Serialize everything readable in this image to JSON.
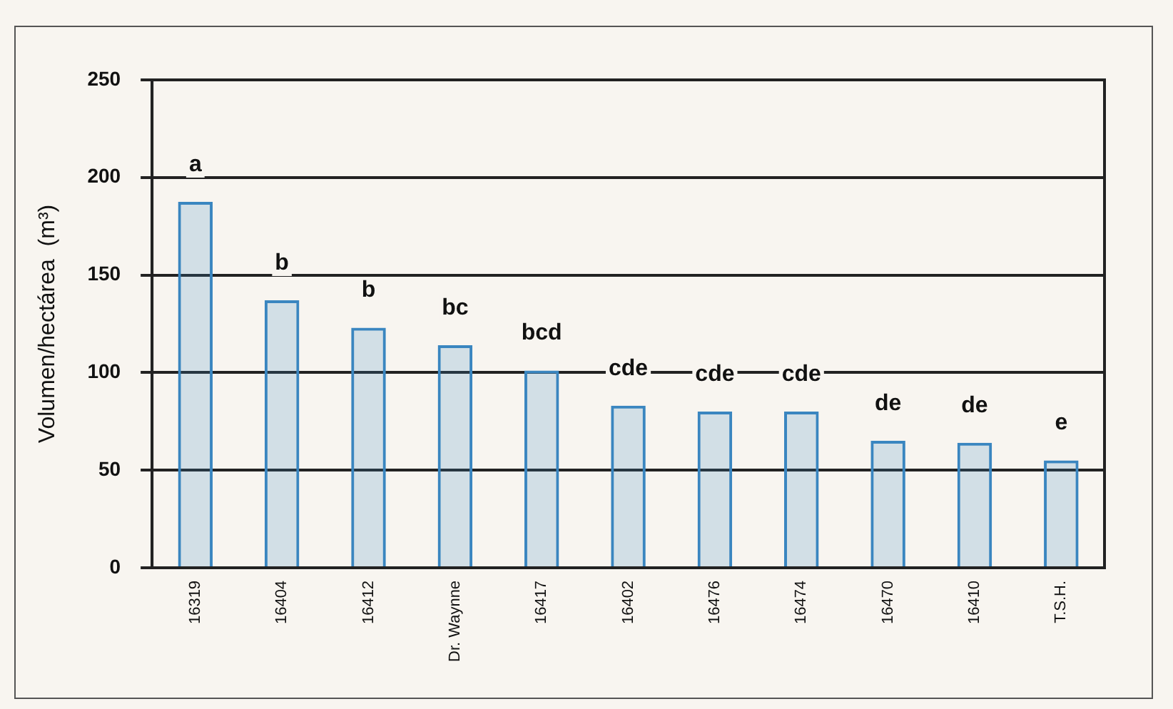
{
  "chart_data": {
    "type": "bar",
    "ylabel": "Volumen/hectárea  (m³)",
    "categories": [
      "16319",
      "16404",
      "16412",
      "Dr. Waynne",
      "16417",
      "16402",
      "16476",
      "16474",
      "16470",
      "16410",
      "T.S.H."
    ],
    "values": [
      187.5,
      137,
      123,
      114,
      101,
      83,
      80,
      80,
      65,
      64,
      55
    ],
    "color": "#3a86c0",
    "ylim": [
      0,
      250
    ],
    "yticks": [
      0,
      50,
      100,
      150,
      200,
      250
    ],
    "grid": "y",
    "annotations": [
      "a",
      "b",
      "b",
      "bc",
      "bcd",
      "cde",
      "cde",
      "cde",
      "de",
      "de",
      "e"
    ]
  }
}
